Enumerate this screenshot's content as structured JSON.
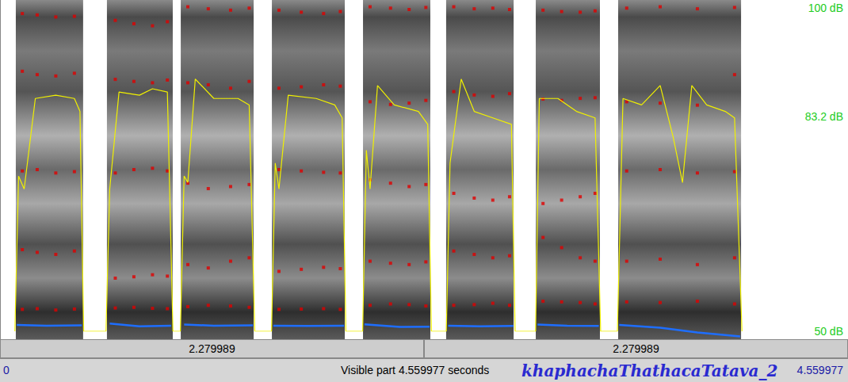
{
  "chart_data": {
    "type": "spectrogram",
    "title": "khaphachaThathacaTatava_2",
    "xlim": [
      0,
      4.559977
    ],
    "ylim": [
      0,
      5000
    ],
    "y2lim": [
      50,
      100
    ],
    "y2ticks": [
      {
        "value": 50,
        "label": "50 dB"
      },
      {
        "value": 83.2,
        "label": "83.2 dB"
      },
      {
        "value": 100,
        "label": "100 dB"
      }
    ],
    "spectrogram_segments": [
      [
        0.085,
        0.447
      ],
      [
        0.575,
        0.929
      ],
      [
        0.972,
        1.364
      ],
      [
        1.462,
        1.854
      ],
      [
        1.952,
        2.314
      ],
      [
        2.399,
        2.762
      ],
      [
        2.881,
        3.226
      ],
      [
        3.324,
        3.985
      ]
    ],
    "series": [
      {
        "type": "scatter",
        "color": "#e00000",
        "marker": "square",
        "x": [
          0.12,
          0.2,
          0.3,
          0.4,
          0.62,
          0.72,
          0.82,
          0.9,
          1.01,
          1.12,
          1.24,
          1.34,
          1.5,
          1.62,
          1.74,
          1.83,
          1.99,
          2.1,
          2.2,
          2.29,
          2.44,
          2.55,
          2.65,
          2.74,
          2.92,
          3.02,
          3.12,
          3.2,
          3.37,
          3.55,
          3.75,
          3.95
        ],
        "values": [
          440,
          450,
          430,
          445,
          460,
          470,
          455,
          450,
          480,
          500,
          490,
          470,
          440,
          445,
          450,
          440,
          500,
          520,
          510,
          490,
          500,
          510,
          530,
          500,
          560,
          550,
          540,
          520,
          550,
          540,
          560,
          520
        ]
      },
      {
        "type": "scatter",
        "color": "#e00000",
        "marker": "square",
        "x": [
          0.12,
          0.2,
          0.3,
          0.4,
          0.62,
          0.72,
          0.82,
          0.9,
          1.01,
          1.12,
          1.24,
          1.34,
          1.5,
          1.62,
          1.74,
          1.83,
          1.99,
          2.1,
          2.2,
          2.29,
          2.44,
          2.55,
          2.65,
          2.74,
          2.92,
          3.02,
          3.12,
          3.2,
          3.37,
          3.55,
          3.75,
          3.95
        ],
        "values": [
          1320,
          1280,
          1250,
          1300,
          900,
          920,
          950,
          930,
          1100,
          1050,
          1150,
          1200,
          1000,
          1030,
          1060,
          1040,
          1150,
          1120,
          1100,
          1140,
          1300,
          1250,
          1200,
          1230,
          1500,
          1350,
          1200,
          1150,
          1150,
          1180,
          1100,
          1200
        ]
      },
      {
        "type": "scatter",
        "color": "#e00000",
        "marker": "square",
        "x": [
          0.12,
          0.2,
          0.3,
          0.4,
          0.62,
          0.72,
          0.82,
          0.9,
          1.01,
          1.12,
          1.24,
          1.34,
          1.5,
          1.62,
          1.74,
          1.83,
          1.99,
          2.1,
          2.2,
          2.29,
          2.44,
          2.55,
          2.65,
          2.74,
          2.92,
          3.02,
          3.12,
          3.2,
          3.37,
          3.55,
          3.75,
          3.95
        ],
        "values": [
          2480,
          2500,
          2450,
          2470,
          2450,
          2500,
          2520,
          2480,
          2300,
          2220,
          2250,
          2280,
          2500,
          2480,
          2460,
          2450,
          2350,
          2300,
          2250,
          2280,
          2150,
          2080,
          2050,
          2100,
          2000,
          2050,
          2100,
          2150,
          2480,
          2500,
          2450,
          2470
        ]
      },
      {
        "type": "scatter",
        "color": "#e00000",
        "marker": "square",
        "x": [
          0.12,
          0.2,
          0.3,
          0.4,
          0.62,
          0.72,
          0.82,
          0.9,
          1.01,
          1.12,
          1.24,
          1.34,
          1.5,
          1.62,
          1.74,
          1.83,
          1.99,
          2.1,
          2.2,
          2.29,
          2.44,
          2.55,
          2.65,
          2.74,
          2.92,
          3.02,
          3.12,
          3.2,
          3.37,
          3.55,
          3.75,
          3.95
        ],
        "values": [
          3950,
          3900,
          3880,
          3920,
          3830,
          3800,
          3780,
          3820,
          3780,
          3750,
          3700,
          3800,
          3700,
          3720,
          3750,
          3730,
          3500,
          3460,
          3480,
          3520,
          3650,
          3600,
          3580,
          3620,
          3540,
          3520,
          3550,
          3560,
          3500,
          3480,
          3450,
          3900
        ]
      },
      {
        "type": "scatter",
        "color": "#e00000",
        "marker": "square",
        "x": [
          0.12,
          0.2,
          0.3,
          0.4,
          0.62,
          0.72,
          0.82,
          0.9,
          1.01,
          1.12,
          1.24,
          1.34,
          1.5,
          1.62,
          1.74,
          1.83,
          1.99,
          2.1,
          2.2,
          2.29,
          2.44,
          2.55,
          2.65,
          2.74,
          2.92,
          3.02,
          3.12,
          3.2,
          3.37,
          3.55,
          3.75,
          3.95
        ],
        "values": [
          4800,
          4780,
          4750,
          4760,
          4700,
          4650,
          4620,
          4680,
          4900,
          4870,
          4850,
          4880,
          4850,
          4820,
          4800,
          4830,
          4900,
          4880,
          4860,
          4890,
          4900,
          4870,
          4880,
          4860,
          4850,
          4830,
          4820,
          4840,
          4880,
          4900,
          4870,
          4890
        ]
      },
      {
        "type": "line",
        "color": "#f0f000",
        "axis": "y2",
        "line_style": "solid",
        "x": [
          0.08,
          0.1,
          0.13,
          0.19,
          0.3,
          0.4,
          0.43,
          0.45,
          0.57,
          0.59,
          0.64,
          0.75,
          0.82,
          0.9,
          0.93,
          0.97,
          0.99,
          1.01,
          1.05,
          1.15,
          1.28,
          1.34,
          1.37,
          1.46,
          1.48,
          1.5,
          1.55,
          1.7,
          1.8,
          1.84,
          1.86,
          1.95,
          1.97,
          1.99,
          2.03,
          2.12,
          2.25,
          2.3,
          2.32,
          2.4,
          2.42,
          2.48,
          2.55,
          2.65,
          2.75,
          2.77,
          2.88,
          2.9,
          3.0,
          3.1,
          3.2,
          3.23,
          3.32,
          3.35,
          3.45,
          3.55,
          3.62,
          3.67,
          3.72,
          3.8,
          3.9,
          3.95,
          3.99
        ],
        "values": [
          50,
          74,
          72,
          86,
          86.5,
          86,
          84,
          50,
          50,
          72,
          87,
          86.5,
          87.5,
          87,
          50,
          50,
          74,
          73,
          89,
          86,
          86,
          85,
          50,
          50,
          76,
          72,
          86.5,
          86,
          85,
          83,
          50,
          50,
          78,
          72,
          88,
          85,
          84,
          82,
          50,
          50,
          76,
          89,
          84,
          83,
          82,
          50,
          50,
          86,
          86,
          84,
          83,
          50,
          50,
          86,
          85,
          88,
          80,
          73,
          88,
          85,
          84,
          83,
          50
        ]
      },
      {
        "type": "line",
        "color": "#1e6eff",
        "line_style": "solid",
        "x": [
          0.09,
          0.25,
          0.44,
          0.51,
          0.59,
          0.75,
          0.92,
          0.95,
          0.99,
          1.15,
          1.36,
          1.41,
          1.47,
          1.65,
          1.85,
          1.9,
          1.96,
          2.15,
          2.31,
          2.35,
          2.41,
          2.58,
          2.76,
          2.82,
          2.89,
          3.05,
          3.22,
          3.27,
          3.33,
          3.55,
          3.75,
          3.98
        ],
        "values": [
          210,
          200,
          205,
          null,
          230,
          190,
          200,
          null,
          215,
          200,
          205,
          null,
          200,
          195,
          200,
          null,
          220,
          180,
          185,
          null,
          200,
          190,
          195,
          null,
          215,
          200,
          195,
          null,
          210,
          170,
          100,
          40
        ]
      }
    ]
  },
  "window_bar": {
    "halves": [
      "2.279989",
      "2.279989"
    ],
    "start": "0",
    "visible": "Visible part 4.559977 seconds",
    "end": "4.559977"
  }
}
